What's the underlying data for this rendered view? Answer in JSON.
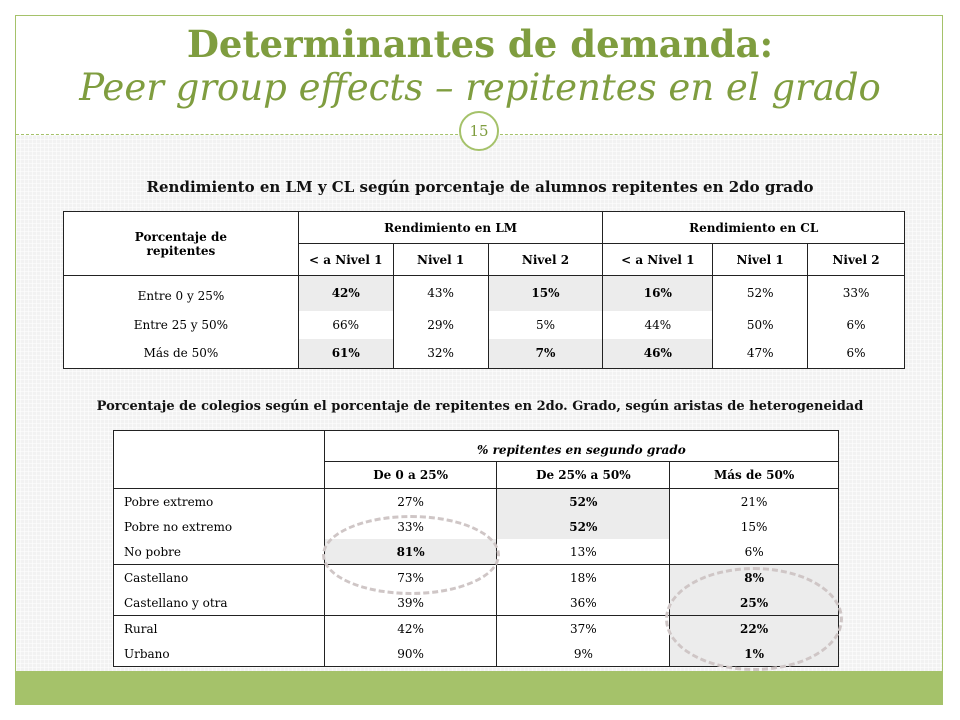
{
  "title": {
    "line1": "Determinantes de demanda:",
    "line2": "Peer group effects – repitentes en el grado"
  },
  "page_number": "15",
  "table1": {
    "caption": "Rendimiento en LM y CL según porcentaje de alumnos repitentes en 2do grado",
    "row_header": "Porcentaje de repitentes",
    "group_lm": "Rendimiento en LM",
    "group_cl": "Rendimiento en CL",
    "sub_headers": [
      "< a Nivel 1",
      "Nivel 1",
      "Nivel 2",
      "< a Nivel 1",
      "Nivel 1",
      "Nivel 2"
    ],
    "rows": [
      {
        "label": "Entre 0 y 25%",
        "values": [
          "42%",
          "43%",
          "15%",
          "16%",
          "52%",
          "33%"
        ]
      },
      {
        "label": "Entre 25 y 50%",
        "values": [
          "66%",
          "29%",
          "5%",
          "44%",
          "50%",
          "6%"
        ]
      },
      {
        "label": "Más de 50%",
        "values": [
          "61%",
          "32%",
          "7%",
          "46%",
          "47%",
          "6%"
        ]
      }
    ]
  },
  "table2": {
    "caption": "Porcentaje de colegios según el porcentaje de repitentes en 2do. Grado, según aristas de heterogeneidad",
    "group_header": "% repitentes en segundo grado",
    "sub_headers": [
      "De 0 a 25%",
      "De 25% a 50%",
      "Más de 50%"
    ],
    "rows": [
      {
        "label": "Pobre extremo",
        "values": [
          "27%",
          "52%",
          "21%"
        ]
      },
      {
        "label": "Pobre no extremo",
        "values": [
          "33%",
          "52%",
          "15%"
        ]
      },
      {
        "label": "No pobre",
        "values": [
          "81%",
          "13%",
          "6%"
        ]
      },
      {
        "label": "Castellano",
        "values": [
          "73%",
          "18%",
          "8%"
        ]
      },
      {
        "label": "Castellano y otra",
        "values": [
          "39%",
          "36%",
          "25%"
        ]
      },
      {
        "label": "Rural",
        "values": [
          "42%",
          "37%",
          "22%"
        ]
      },
      {
        "label": "Urbano",
        "values": [
          "90%",
          "9%",
          "1%"
        ]
      }
    ]
  }
}
